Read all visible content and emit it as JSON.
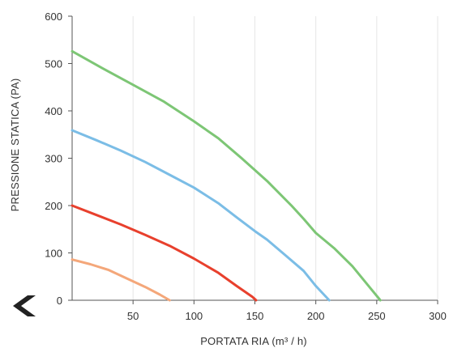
{
  "chart_data": {
    "type": "line",
    "title": "",
    "xlabel": "PORTATA RIA (m³ / h)",
    "ylabel": "PRESSIONE STATICA (PA)",
    "xlim": [
      0,
      300
    ],
    "ylim": [
      0,
      600
    ],
    "x_ticks": [
      50,
      100,
      150,
      200,
      250,
      300
    ],
    "y_ticks": [
      0,
      100,
      200,
      300,
      400,
      500,
      600
    ],
    "grid": "vertical",
    "legend": "none",
    "series": [
      {
        "color": "#7dc675",
        "points": [
          [
            0,
            526
          ],
          [
            25,
            490
          ],
          [
            50,
            455
          ],
          [
            75,
            420
          ],
          [
            100,
            378
          ],
          [
            120,
            342
          ],
          [
            140,
            298
          ],
          [
            160,
            252
          ],
          [
            180,
            200
          ],
          [
            190,
            172
          ],
          [
            200,
            142
          ],
          [
            215,
            110
          ],
          [
            230,
            72
          ],
          [
            245,
            25
          ],
          [
            253,
            0
          ]
        ]
      },
      {
        "color": "#7bbde6",
        "points": [
          [
            0,
            359
          ],
          [
            20,
            338
          ],
          [
            40,
            316
          ],
          [
            60,
            292
          ],
          [
            80,
            265
          ],
          [
            100,
            238
          ],
          [
            120,
            205
          ],
          [
            135,
            175
          ],
          [
            150,
            146
          ],
          [
            160,
            128
          ],
          [
            175,
            95
          ],
          [
            190,
            62
          ],
          [
            200,
            30
          ],
          [
            211,
            0
          ]
        ]
      },
      {
        "color": "#e8402d",
        "points": [
          [
            0,
            200
          ],
          [
            20,
            180
          ],
          [
            40,
            160
          ],
          [
            60,
            138
          ],
          [
            80,
            115
          ],
          [
            100,
            88
          ],
          [
            120,
            58
          ],
          [
            135,
            30
          ],
          [
            148,
            7
          ],
          [
            151,
            0
          ]
        ]
      },
      {
        "color": "#f4a77a",
        "points": [
          [
            0,
            86
          ],
          [
            15,
            76
          ],
          [
            30,
            64
          ],
          [
            45,
            46
          ],
          [
            60,
            28
          ],
          [
            72,
            12
          ],
          [
            80,
            0
          ]
        ]
      }
    ]
  },
  "nav": {
    "back_icon": "chevron-left-icon",
    "icon_color": "#222222"
  }
}
